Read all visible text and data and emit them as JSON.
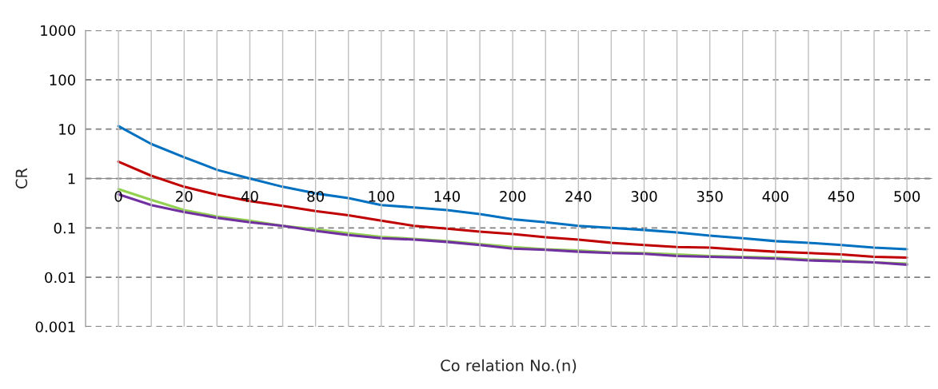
{
  "chart_data": {
    "type": "line",
    "xlabel": "Co relation No.(n)",
    "ylabel": "CR",
    "categories": [
      "0",
      null,
      "20",
      null,
      "40",
      null,
      "80",
      null,
      "100",
      null,
      "140",
      null,
      "200",
      null,
      "240",
      null,
      "300",
      null,
      "350",
      null,
      "400",
      null,
      "450",
      null,
      "500"
    ],
    "log": true,
    "ylim": [
      0.001,
      1000
    ],
    "yticks": [
      0.001,
      0.01,
      0.1,
      1,
      10,
      100,
      1000
    ],
    "grid": true,
    "marker": "none",
    "line_style": "solid",
    "series": [
      {
        "color": "#0070c0",
        "values": [
          11.5,
          5.0,
          2.7,
          1.5,
          1.0,
          0.68,
          0.5,
          0.4,
          0.29,
          0.26,
          0.23,
          0.19,
          0.15,
          0.13,
          0.11,
          0.1,
          0.091,
          0.081,
          0.07,
          0.062,
          0.054,
          0.05,
          0.045,
          0.04,
          0.037
        ]
      },
      {
        "color": "#c00000",
        "values": [
          2.2,
          1.14,
          0.68,
          0.47,
          0.35,
          0.28,
          0.22,
          0.18,
          0.14,
          0.11,
          0.097,
          0.084,
          0.075,
          0.065,
          0.058,
          0.05,
          0.045,
          0.041,
          0.04,
          0.036,
          0.033,
          0.031,
          0.029,
          0.026,
          0.025
        ]
      },
      {
        "color": "#92d050",
        "values": [
          0.61,
          0.37,
          0.23,
          0.17,
          0.14,
          0.11,
          0.094,
          0.078,
          0.066,
          0.06,
          0.054,
          0.047,
          0.041,
          0.037,
          0.035,
          0.032,
          0.031,
          0.029,
          0.027,
          0.026,
          0.025,
          0.023,
          0.022,
          0.02,
          0.019
        ]
      },
      {
        "color": "#7030a0",
        "values": [
          0.48,
          0.29,
          0.21,
          0.16,
          0.13,
          0.11,
          0.087,
          0.072,
          0.062,
          0.058,
          0.052,
          0.045,
          0.038,
          0.036,
          0.033,
          0.031,
          0.03,
          0.027,
          0.026,
          0.025,
          0.024,
          0.022,
          0.021,
          0.02,
          0.018
        ]
      }
    ]
  }
}
